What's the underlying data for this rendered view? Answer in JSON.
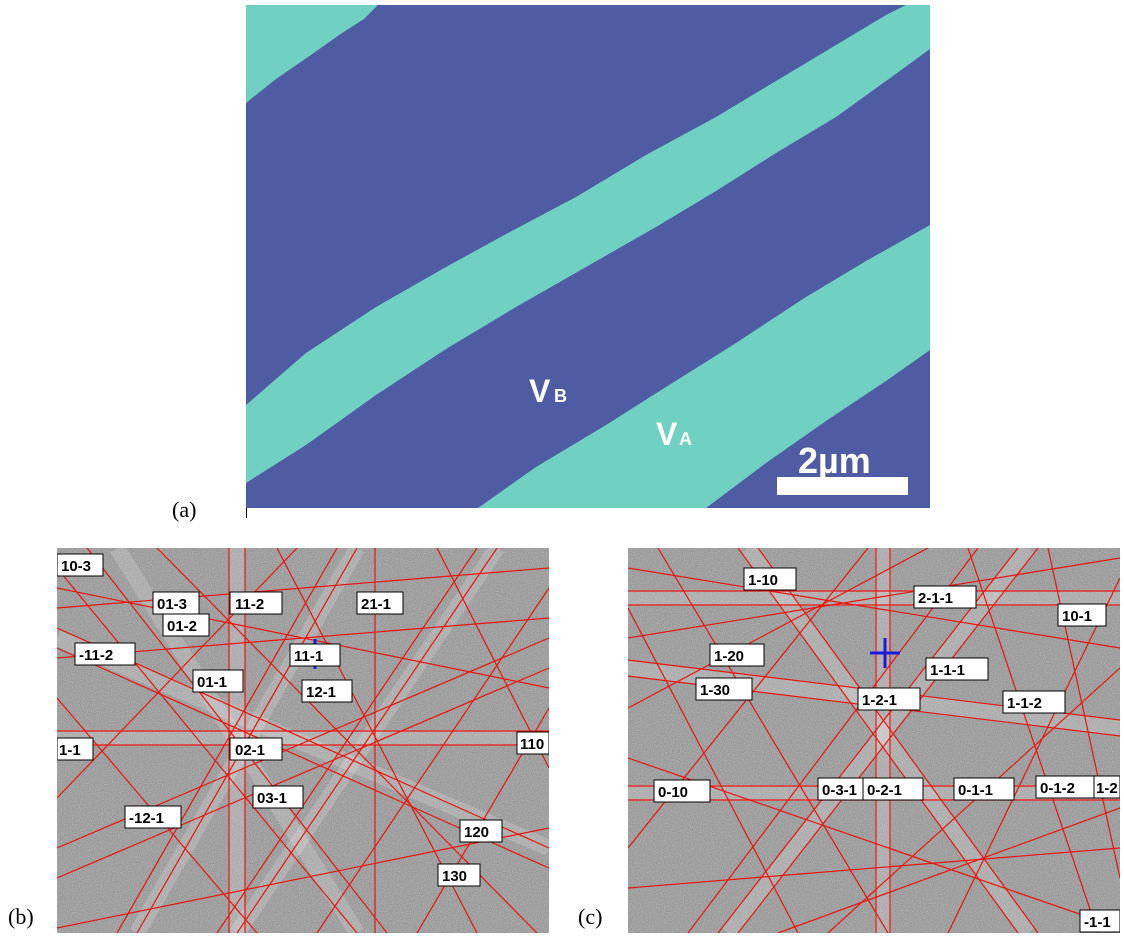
{
  "panels": {
    "a": {
      "label": "(a)"
    },
    "b": {
      "label": "(b)"
    },
    "c": {
      "label": "(c)"
    }
  },
  "phase_map": {
    "phase_b_label": {
      "main": "V",
      "sub": "B"
    },
    "phase_a_label": {
      "main": "V",
      "sub": "A"
    },
    "scale_bar_label": "2µm",
    "colors": {
      "phase_a": "#70d0c2",
      "phase_b": "#4f5ca4",
      "text": "#ffffff"
    }
  },
  "kikuchi_b": {
    "labels": [
      "10-3",
      "01-3",
      "01-2",
      "11-2",
      "21-1",
      "11-1",
      "-11-2",
      "01-1",
      "12-1",
      "1-1",
      "02-1",
      "110",
      "03-1",
      "-12-1",
      "120",
      "130"
    ],
    "marker_color": "#1a1adc",
    "line_color": "#e8140f"
  },
  "kikuchi_c": {
    "labels": [
      "1-10",
      "2-1-1",
      "10-1",
      "1-20",
      "1-1-1",
      "1-30",
      "1-2-1",
      "1-1-2",
      "0-10",
      "0-3-1",
      "0-2-1",
      "0-1-1",
      "0-1-2",
      "1-2",
      "-1-1"
    ],
    "marker_color": "#1a1adc",
    "line_color": "#e8140f"
  }
}
